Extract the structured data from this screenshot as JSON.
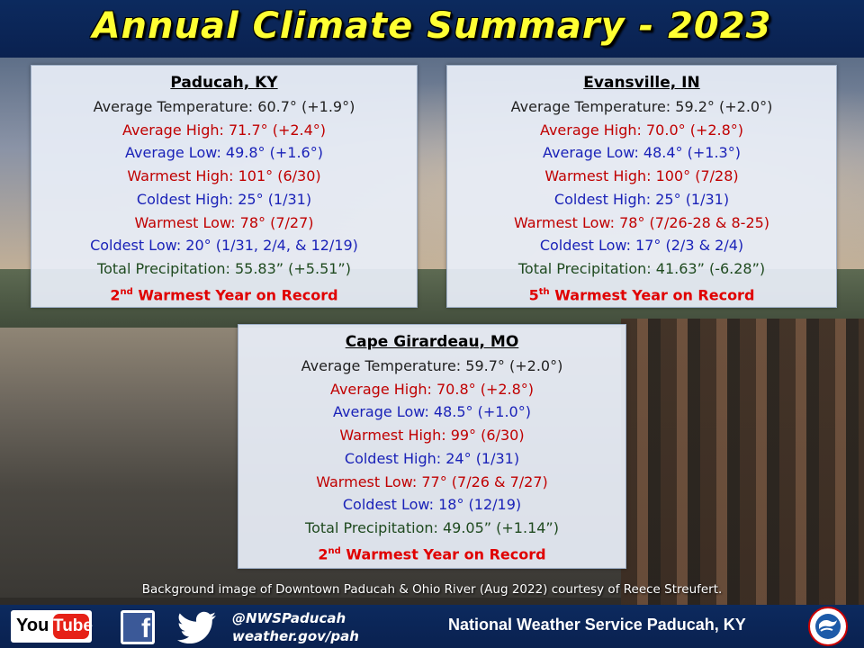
{
  "header": {
    "title": "Annual Climate Summary - 2023"
  },
  "cards": [
    {
      "city": "Paducah, KY",
      "lines": [
        "Average Temperature: 60.7° (+1.9°)",
        "Average High: 71.7° (+2.4°)",
        "Average Low: 49.8° (+1.6°)",
        "Warmest High: 101° (6/30)",
        "Coldest High: 25° (1/31)",
        "Warmest Low: 78° (7/27)",
        "Coldest Low: 20° (1/31, 2/4, & 12/19)",
        "Total Precipitation: 55.83” (+5.51”)"
      ],
      "rank_num": "2",
      "rank_suffix": "nd",
      "rank_text": " Warmest Year on Record"
    },
    {
      "city": "Evansville, IN",
      "lines": [
        "Average Temperature: 59.2° (+2.0°)",
        "Average High: 70.0° (+2.8°)",
        "Average Low: 48.4° (+1.3°)",
        "Warmest High: 100° (7/28)",
        "Coldest High: 25° (1/31)",
        "Warmest Low: 78° (7/26-28 & 8-25)",
        "Coldest Low: 17° (2/3 & 2/4)",
        "Total Precipitation: 41.63” (-6.28”)"
      ],
      "rank_num": "5",
      "rank_suffix": "th",
      "rank_text": " Warmest Year on Record"
    },
    {
      "city": "Cape Girardeau, MO",
      "lines": [
        "Average Temperature: 59.7° (+2.0°)",
        "Average High: 70.8° (+2.8°)",
        "Average Low: 48.5° (+1.0°)",
        "Warmest High: 99° (6/30)",
        "Coldest High: 24° (1/31)",
        "Warmest Low: 77° (7/26 & 7/27)",
        "Coldest Low: 18° (12/19)",
        "Total Precipitation: 49.05” (+1.14”)"
      ],
      "rank_num": "2",
      "rank_suffix": "nd",
      "rank_text": " Warmest Year on Record"
    }
  ],
  "caption": "Background image of Downtown Paducah & Ohio River (Aug 2022) courtesy of Reece Streufert.",
  "footer": {
    "youtube_you": "You",
    "youtube_tube": "Tube",
    "facebook_letter": "f",
    "handle": "@NWSPaducah",
    "website": "weather.gov/pah",
    "office": "National Weather Service Paducah, KY"
  },
  "colors": {
    "title": "#ffff33",
    "header_bg": "#0c2a5e",
    "avg_temp": "#222222",
    "high": "#c00000",
    "low": "#1a22b8",
    "precip": "#1f4a1f",
    "rank": "#e00000"
  }
}
